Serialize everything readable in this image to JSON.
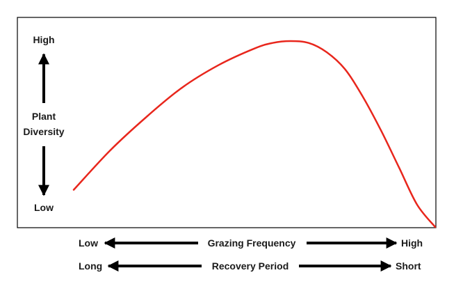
{
  "y_axis": {
    "high_label": "High",
    "title_line1": "Plant",
    "title_line2": "Diversity",
    "low_label": "Low"
  },
  "x_axis_frequency": {
    "left_label": "Low",
    "title": "Grazing Frequency",
    "right_label": "High"
  },
  "x_axis_recovery": {
    "left_label": "Long",
    "title": "Recovery Period",
    "right_label": "Short"
  },
  "colors": {
    "curve": "#e8261c",
    "frame": "#000000",
    "arrows": "#000000"
  },
  "chart_data": {
    "type": "line",
    "title": "",
    "series": [
      {
        "color": "#e8261c",
        "x": [
          0.0,
          0.1,
          0.2,
          0.3,
          0.4,
          0.5,
          0.55,
          0.6,
          0.65,
          0.7,
          0.75,
          0.8,
          0.85,
          0.9,
          0.95,
          1.0
        ],
        "y": [
          0.2,
          0.41,
          0.59,
          0.75,
          0.87,
          0.96,
          0.99,
          1.0,
          0.99,
          0.94,
          0.85,
          0.7,
          0.52,
          0.32,
          0.12,
          0.0
        ]
      }
    ],
    "xlabel": "Grazing Frequency",
    "ylabel": "Plant Diversity",
    "grid": false
  }
}
